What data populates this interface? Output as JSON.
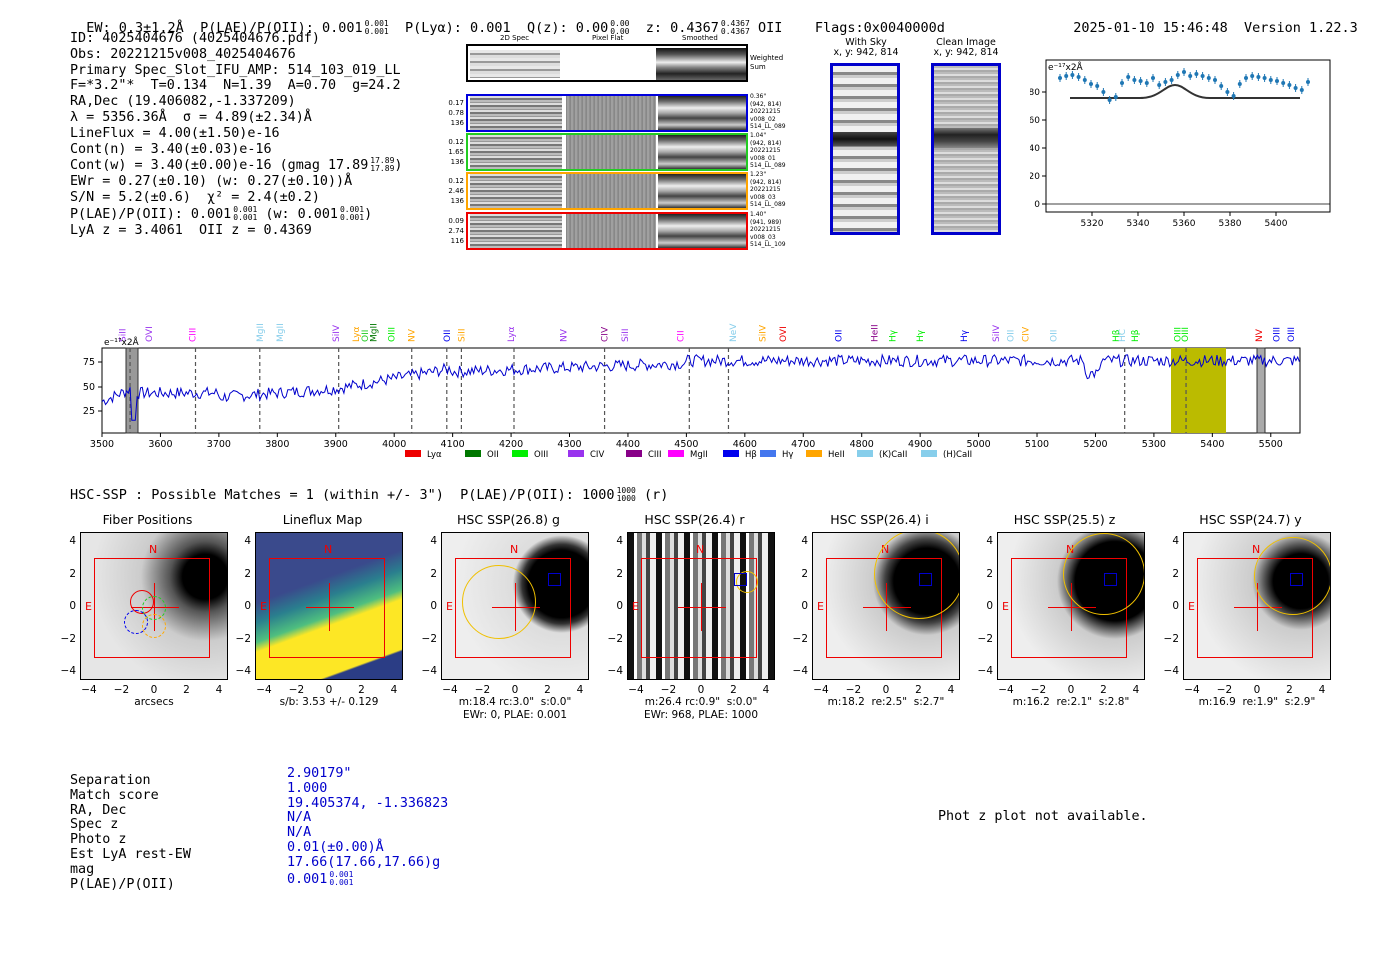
{
  "header": {
    "ew": "EW: 0.3±1.2Å",
    "plae": "P(LAE)/P(OII): 0.001",
    "plae_sup": "0.001",
    "plae_sub": "0.001",
    "plya": "P(Lyα): 0.001",
    "qz": "Q(z): 0.00",
    "qz_sup": "0.00",
    "qz_sub": "0.00",
    "z": "z: 0.4367",
    "z_sup": "0.4367",
    "z_sub": "0.4367",
    "z_line": "OII",
    "flags": "Flags:0x0040000d",
    "timestamp": "2025-01-10 15:46:48",
    "version": "Version 1.22.3"
  },
  "info": {
    "id": "ID: 4025404676 (4025404676.pdf)",
    "obs": "Obs: 20221215v008_4025404676",
    "primary": "Primary Spec_Slot_IFU_AMP: 514_103_019_LL",
    "f": "F=*3.2\"*  T=0.134  N=1.39  A=0.70  g=24.2",
    "radec": "RA,Dec (19.406082,-1.337209)",
    "lambda": "λ = 5356.36Å  σ = 4.89(±2.34)Å",
    "lineflux": "LineFlux = 4.00(±1.50)e-16",
    "contn": "Cont(n) = 3.40(±0.03)e-16",
    "contw": "Cont(w) = 3.40(±0.00)e-16 (gmag 17.89",
    "contw_sup": "17.89",
    "contw_sub": "17.89",
    "contw_end": ")",
    "ewr": "EWr = 0.27(±0.10) (w: 0.27(±0.10))Å",
    "sn": "S/N = 5.2(±0.6)  χ² = 2.4(±0.2)",
    "plae": "P(LAE)/P(OII): 0.001",
    "plae_sup": "0.001",
    "plae_sub": "0.001",
    "plae_w": "(w: 0.001",
    "plae_w_sup": "0.001",
    "plae_w_sub": "0.001",
    "plae_end": ")",
    "lya": "LyA z = 3.4061  OII z = 0.4369"
  },
  "cutouts": {
    "col_2d": "2D Spec",
    "col_flat": "Pixel Flat",
    "col_smooth": "Smoothed",
    "weighted": "Weighted",
    "sum": "Sum",
    "rows": [
      {
        "n1": "0.17",
        "n2": "0.78",
        "n3": "136",
        "d1": "0.36\"",
        "d2": "(942, 814)",
        "d3": "20221215",
        "d4": "v008_02",
        "d5": "514_LL_089",
        "color": "#0000dd"
      },
      {
        "n1": "0.12",
        "n2": "1.65",
        "n3": "136",
        "d1": "1.04\"",
        "d2": "(942, 814)",
        "d3": "20221215",
        "d4": "v008_01",
        "d5": "514_LL_089",
        "color": "#22cc22"
      },
      {
        "n1": "0.12",
        "n2": "2.46",
        "n3": "136",
        "d1": "1.23\"",
        "d2": "(942, 814)",
        "d3": "20221215",
        "d4": "v008_03",
        "d5": "514_LL_089",
        "color": "#ffa500"
      },
      {
        "n1": "0.09",
        "n2": "2.74",
        "n3": "116",
        "d1": "1.40\"",
        "d2": "(941, 989)",
        "d3": "20221215",
        "d4": "v008_03",
        "d5": "514_LL_109",
        "color": "#ee0000"
      }
    ]
  },
  "sky": {
    "with_sky": "With Sky",
    "with_sky_xy": "x, y: 942, 814",
    "clean": "Clean Image",
    "clean_xy": "x, y: 942, 814"
  },
  "zoom_chart": {
    "ylabel": "e⁻¹⁷x2Å",
    "yticks": [
      "0",
      "20",
      "40",
      "60",
      "80"
    ],
    "xticks": [
      "5320",
      "5340",
      "5360",
      "5380",
      "5400"
    ]
  },
  "spectrum": {
    "ylabel": "e⁻¹⁷x2Å",
    "yticks": [
      "25",
      "50",
      "75"
    ],
    "xticks": [
      "3500",
      "3600",
      "3700",
      "3800",
      "3900",
      "4000",
      "4100",
      "4200",
      "4300",
      "4400",
      "4500",
      "4600",
      "4700",
      "4800",
      "4900",
      "5000",
      "5100",
      "5200",
      "5300",
      "5400",
      "5500"
    ],
    "legend": [
      {
        "label": "Lyα",
        "color": "#ee0000"
      },
      {
        "label": "OII",
        "color": "#007700"
      },
      {
        "label": "OIII",
        "color": "#00ee00"
      },
      {
        "label": "CIV",
        "color": "#9933ee"
      },
      {
        "label": "CIII",
        "color": "#880088"
      },
      {
        "label": "MgII",
        "color": "#ff00ff"
      },
      {
        "label": "Hβ",
        "color": "#0000ee"
      },
      {
        "label": "Hγ",
        "color": "#4477ee"
      },
      {
        "label": "HeII",
        "color": "#ffa500"
      },
      {
        "label": "(K)CaII",
        "color": "#87ceeb"
      },
      {
        "label": "(H)CaII",
        "color": "#87ceeb"
      }
    ],
    "lines": [
      {
        "t": "SiII",
        "c": "#9933ee"
      },
      {
        "t": "OVI",
        "c": "#9933ee"
      },
      {
        "t": "CIII",
        "c": "#ff00ff"
      },
      {
        "t": "MgII",
        "c": "#87ceeb"
      },
      {
        "t": "MgII",
        "c": "#87ceeb"
      },
      {
        "t": "SiIV",
        "c": "#9933ee"
      },
      {
        "t": "Lyα",
        "c": "#ffa500"
      },
      {
        "t": "OII",
        "c": "#22cc22"
      },
      {
        "t": "MgII",
        "c": "#007700"
      },
      {
        "t": "OIII",
        "c": "#00ee00"
      },
      {
        "t": "NV",
        "c": "#ffa500"
      },
      {
        "t": "OII",
        "c": "#0000ee"
      },
      {
        "t": "SiII",
        "c": "#ffa500"
      },
      {
        "t": "Lyα",
        "c": "#9933ee"
      },
      {
        "t": "NV",
        "c": "#9933ee"
      },
      {
        "t": "CIV",
        "c": "#880088"
      },
      {
        "t": "SiII",
        "c": "#9933ee"
      },
      {
        "t": "CII",
        "c": "#ff00ff"
      },
      {
        "t": "NeV",
        "c": "#87ceeb"
      },
      {
        "t": "SiIV",
        "c": "#ffa500"
      },
      {
        "t": "OVI",
        "c": "#ee0000"
      },
      {
        "t": "OII",
        "c": "#0000ee"
      },
      {
        "t": "HeII",
        "c": "#880088"
      },
      {
        "t": "Hγ",
        "c": "#00ee00"
      },
      {
        "t": "Hγ",
        "c": "#00ee00"
      },
      {
        "t": "Hγ",
        "c": "#0000ee"
      },
      {
        "t": "SiIV",
        "c": "#9933ee"
      },
      {
        "t": "OII",
        "c": "#87ceeb"
      },
      {
        "t": "CIV",
        "c": "#ffa500"
      },
      {
        "t": "OII",
        "c": "#87ceeb"
      },
      {
        "t": "Hβ",
        "c": "#00ee00"
      },
      {
        "t": "HC",
        "c": "#87ceeb"
      },
      {
        "t": "Hβ",
        "c": "#00ee00"
      },
      {
        "t": "OIII",
        "c": "#00ee00"
      },
      {
        "t": "OIII",
        "c": "#00ee00"
      },
      {
        "t": "NV",
        "c": "#ee0000"
      },
      {
        "t": "OIII",
        "c": "#0000ee"
      },
      {
        "t": "OIII",
        "c": "#0000ee"
      }
    ]
  },
  "hsc": {
    "title": "HSC-SSP : Possible Matches = 1 (within +/- 3\")  P(LAE)/P(OII): 1000",
    "sup": "1000",
    "sub": "1000",
    "title_end": "(r)",
    "ticks": [
      "4",
      "2",
      "0",
      "−2",
      "−4"
    ],
    "xticks": [
      "−4",
      "−2",
      "0",
      "2",
      "4"
    ],
    "panels": [
      {
        "title": "Fiber Positions",
        "cap1": "arcsecs",
        "cap2": ""
      },
      {
        "title": "Lineflux Map",
        "cap1": "s/b: 3.53 +/- 0.129",
        "cap2": ""
      },
      {
        "title": "HSC SSP(26.8) g",
        "cap1": "m:18.4 rc:3.0\"  s:0.0\"",
        "cap2": "EWr: 0, PLAE: 0.001"
      },
      {
        "title": "HSC SSP(26.4) r",
        "cap1": "m:26.4 rc:0.9\"  s:0.0\"",
        "cap2": "EWr: 968, PLAE: 1000"
      },
      {
        "title": "HSC SSP(26.4) i",
        "cap1": "m:18.2  re:2.5\"  s:2.7\"",
        "cap2": ""
      },
      {
        "title": "HSC SSP(25.5) z",
        "cap1": "m:16.2  re:2.1\"  s:2.8\"",
        "cap2": ""
      },
      {
        "title": "HSC SSP(24.7) y",
        "cap1": "m:16.9  re:1.9\"  s:2.9\"",
        "cap2": ""
      }
    ],
    "n_label": "N",
    "e_label": "E"
  },
  "match": {
    "labels": [
      "Separation",
      "Match score",
      "RA, Dec",
      "Spec z",
      "Photo z",
      "Est LyA rest-EW",
      "mag",
      "P(LAE)/P(OII)"
    ],
    "values": [
      "2.90179\"",
      "1.000",
      "19.405374, -1.336823",
      "N/A",
      "N/A",
      "0.01(±0.00)Å",
      "17.66(17.66,17.66)g",
      "0.001"
    ],
    "plae_sup": "0.001",
    "plae_sub": "0.001",
    "photz_msg": "Phot z plot not available."
  }
}
